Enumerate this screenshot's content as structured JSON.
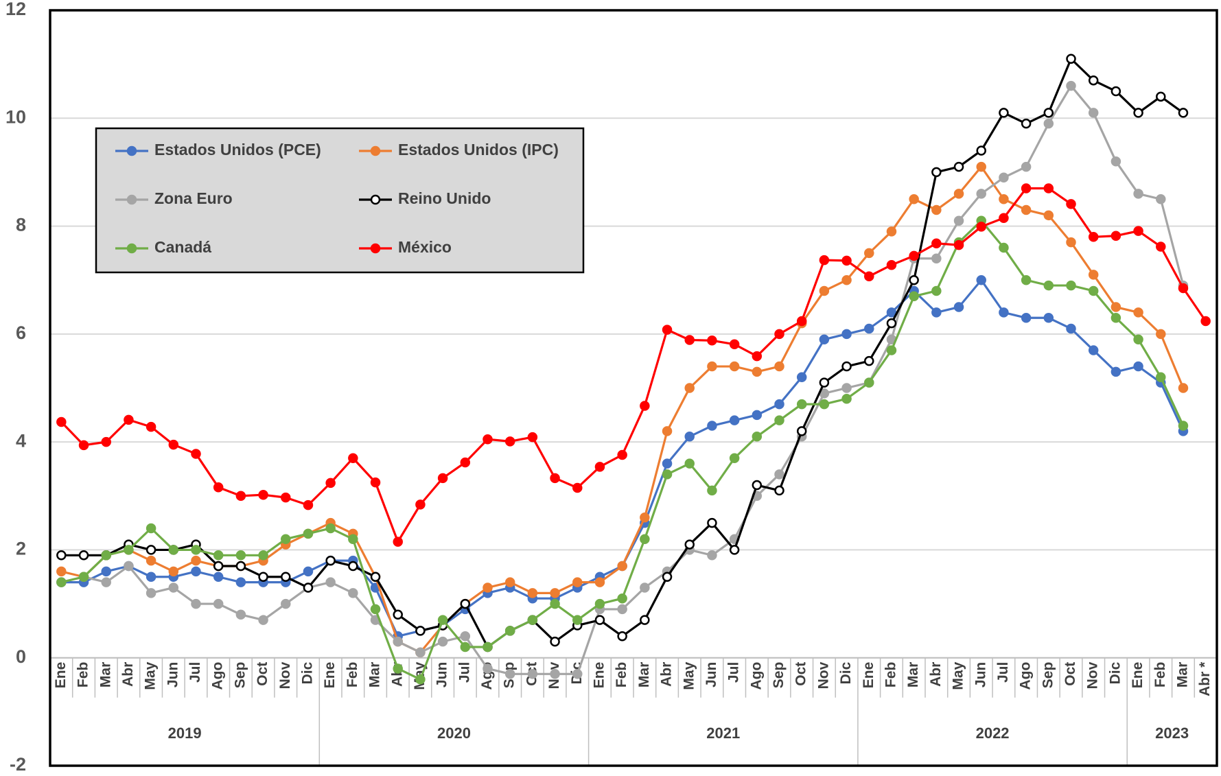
{
  "chart_data": {
    "type": "line",
    "categories": [
      "Ene",
      "Feb",
      "Mar",
      "Abr",
      "May",
      "Jun",
      "Jul",
      "Ago",
      "Sep",
      "Oct",
      "Nov",
      "Dic",
      "Ene",
      "Feb",
      "Mar",
      "Abr",
      "May",
      "Jun",
      "Jul",
      "Ago",
      "Sep",
      "Oct",
      "Nov",
      "Dic",
      "Ene",
      "Feb",
      "Mar",
      "Abr",
      "May",
      "Jun",
      "Jul",
      "Ago",
      "Sep",
      "Oct",
      "Nov",
      "Dic",
      "Ene",
      "Feb",
      "Mar",
      "Abr",
      "May",
      "Jun",
      "Jul",
      "Ago",
      "Sep",
      "Oct",
      "Nov",
      "Dic",
      "Ene",
      "Feb",
      "Mar",
      "Abr *"
    ],
    "years": [
      "2019",
      "2020",
      "2021",
      "2022",
      "2023"
    ],
    "ylim": [
      -2,
      12
    ],
    "yticks": [
      -2,
      0,
      2,
      4,
      6,
      8,
      10,
      12
    ],
    "grid": true,
    "legend": "upper-left",
    "series": [
      {
        "name": "Estados Unidos (PCE)",
        "color": "#4472c4",
        "values": [
          1.4,
          1.4,
          1.6,
          1.7,
          1.5,
          1.5,
          1.6,
          1.5,
          1.4,
          1.4,
          1.4,
          1.6,
          1.8,
          1.8,
          1.3,
          0.4,
          0.5,
          0.6,
          0.9,
          1.2,
          1.3,
          1.1,
          1.1,
          1.3,
          1.5,
          1.7,
          2.5,
          3.6,
          4.1,
          4.3,
          4.4,
          4.5,
          4.7,
          5.2,
          5.9,
          6.0,
          6.1,
          6.4,
          6.8,
          6.4,
          6.5,
          7.0,
          6.4,
          6.3,
          6.3,
          6.1,
          5.7,
          5.3,
          5.4,
          5.1,
          4.2,
          null
        ]
      },
      {
        "name": "Estados Unidos (IPC)",
        "color": "#ed7d31",
        "values": [
          1.6,
          1.5,
          1.9,
          2.0,
          1.8,
          1.6,
          1.8,
          1.7,
          1.7,
          1.8,
          2.1,
          2.3,
          2.5,
          2.3,
          1.5,
          0.3,
          0.1,
          0.6,
          1.0,
          1.3,
          1.4,
          1.2,
          1.2,
          1.4,
          1.4,
          1.7,
          2.6,
          4.2,
          5.0,
          5.4,
          5.4,
          5.3,
          5.4,
          6.2,
          6.8,
          7.0,
          7.5,
          7.9,
          8.5,
          8.3,
          8.6,
          9.1,
          8.5,
          8.3,
          8.2,
          7.7,
          7.1,
          6.5,
          6.4,
          6.0,
          5.0,
          null
        ]
      },
      {
        "name": "Zona Euro",
        "color": "#a5a5a5",
        "values": [
          1.4,
          1.5,
          1.4,
          1.7,
          1.2,
          1.3,
          1.0,
          1.0,
          0.8,
          0.7,
          1.0,
          1.3,
          1.4,
          1.2,
          0.7,
          0.3,
          0.1,
          0.3,
          0.4,
          -0.2,
          -0.3,
          -0.3,
          -0.3,
          -0.3,
          0.9,
          0.9,
          1.3,
          1.6,
          2.0,
          1.9,
          2.2,
          3.0,
          3.4,
          4.1,
          4.9,
          5.0,
          5.1,
          5.9,
          7.4,
          7.4,
          8.1,
          8.6,
          8.9,
          9.1,
          9.9,
          10.6,
          10.1,
          9.2,
          8.6,
          8.5,
          6.9,
          null
        ]
      },
      {
        "name": "Reino Unido",
        "color": "#000000",
        "marker_fill": "#ffffff",
        "values": [
          1.9,
          1.9,
          1.9,
          2.1,
          2.0,
          2.0,
          2.1,
          1.7,
          1.7,
          1.5,
          1.5,
          1.3,
          1.8,
          1.7,
          1.5,
          0.8,
          0.5,
          0.6,
          1.0,
          0.2,
          0.5,
          0.7,
          0.3,
          0.6,
          0.7,
          0.4,
          0.7,
          1.5,
          2.1,
          2.5,
          2.0,
          3.2,
          3.1,
          4.2,
          5.1,
          5.4,
          5.5,
          6.2,
          7.0,
          9.0,
          9.1,
          9.4,
          10.1,
          9.9,
          10.1,
          11.1,
          10.7,
          10.5,
          10.1,
          10.4,
          10.1,
          null
        ]
      },
      {
        "name": "Canadá",
        "color": "#70ad47",
        "values": [
          1.4,
          1.5,
          1.9,
          2.0,
          2.4,
          2.0,
          2.0,
          1.9,
          1.9,
          1.9,
          2.2,
          2.3,
          2.4,
          2.2,
          0.9,
          -0.2,
          -0.4,
          0.7,
          0.2,
          0.2,
          0.5,
          0.7,
          1.0,
          0.7,
          1.0,
          1.1,
          2.2,
          3.4,
          3.6,
          3.1,
          3.7,
          4.1,
          4.4,
          4.7,
          4.7,
          4.8,
          5.1,
          5.7,
          6.7,
          6.8,
          7.7,
          8.1,
          7.6,
          7.0,
          6.9,
          6.9,
          6.8,
          6.3,
          5.9,
          5.2,
          4.3,
          null
        ]
      },
      {
        "name": "México",
        "color": "#ff0000",
        "values": [
          4.37,
          3.94,
          4.0,
          4.41,
          4.28,
          3.95,
          3.78,
          3.16,
          3.0,
          3.02,
          2.97,
          2.83,
          3.24,
          3.7,
          3.25,
          2.15,
          2.84,
          3.33,
          3.62,
          4.05,
          4.01,
          4.09,
          3.33,
          3.15,
          3.54,
          3.76,
          4.67,
          6.08,
          5.89,
          5.88,
          5.81,
          5.59,
          6.0,
          6.24,
          7.37,
          7.36,
          7.07,
          7.28,
          7.45,
          7.68,
          7.65,
          7.99,
          8.15,
          8.7,
          8.7,
          8.41,
          7.8,
          7.82,
          7.91,
          7.62,
          6.85,
          6.24
        ]
      }
    ]
  }
}
